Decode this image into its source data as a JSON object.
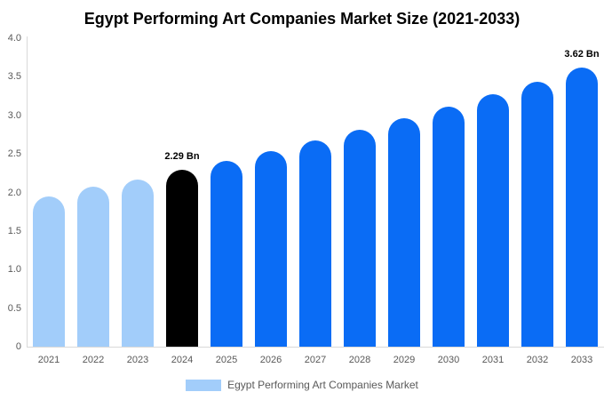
{
  "title": "Egypt Performing Art Companies Market Size (2021-2033)",
  "legend": {
    "label": "Egypt Performing Art Companies Market"
  },
  "colors": {
    "historical": "#a2cdfa",
    "current": "#000000",
    "forecast": "#0a6cf5",
    "axis": "#d9d9d9",
    "tick_text": "#595959"
  },
  "chart_data": {
    "type": "bar",
    "title": "Egypt Performing Art Companies Market Size (2021-2033)",
    "xlabel": "",
    "ylabel": "",
    "unit": "Bn",
    "categories": [
      "2021",
      "2022",
      "2023",
      "2024",
      "2025",
      "2026",
      "2027",
      "2028",
      "2029",
      "2030",
      "2031",
      "2032",
      "2033"
    ],
    "values": [
      1.95,
      2.07,
      2.17,
      2.29,
      2.41,
      2.54,
      2.67,
      2.81,
      2.96,
      3.11,
      3.27,
      3.44,
      3.62
    ],
    "color_roles": [
      "historical",
      "historical",
      "historical",
      "current",
      "forecast",
      "forecast",
      "forecast",
      "forecast",
      "forecast",
      "forecast",
      "forecast",
      "forecast",
      "forecast"
    ],
    "annotations": [
      {
        "index": 3,
        "label": "2.29 Bn"
      },
      {
        "index": 12,
        "label": "3.62 Bn"
      }
    ],
    "ylim": [
      0,
      4.0
    ],
    "yticks": [
      {
        "value": 0.0,
        "label": "0"
      },
      {
        "value": 0.5,
        "label": "0.5"
      },
      {
        "value": 1.0,
        "label": "1.0"
      },
      {
        "value": 1.5,
        "label": "1.5"
      },
      {
        "value": 2.0,
        "label": "2.0"
      },
      {
        "value": 2.5,
        "label": "2.5"
      },
      {
        "value": 3.0,
        "label": "3.0"
      },
      {
        "value": 3.5,
        "label": "3.5"
      },
      {
        "value": 4.0,
        "label": "4.0"
      }
    ],
    "grid": false,
    "legend_position": "bottom"
  }
}
